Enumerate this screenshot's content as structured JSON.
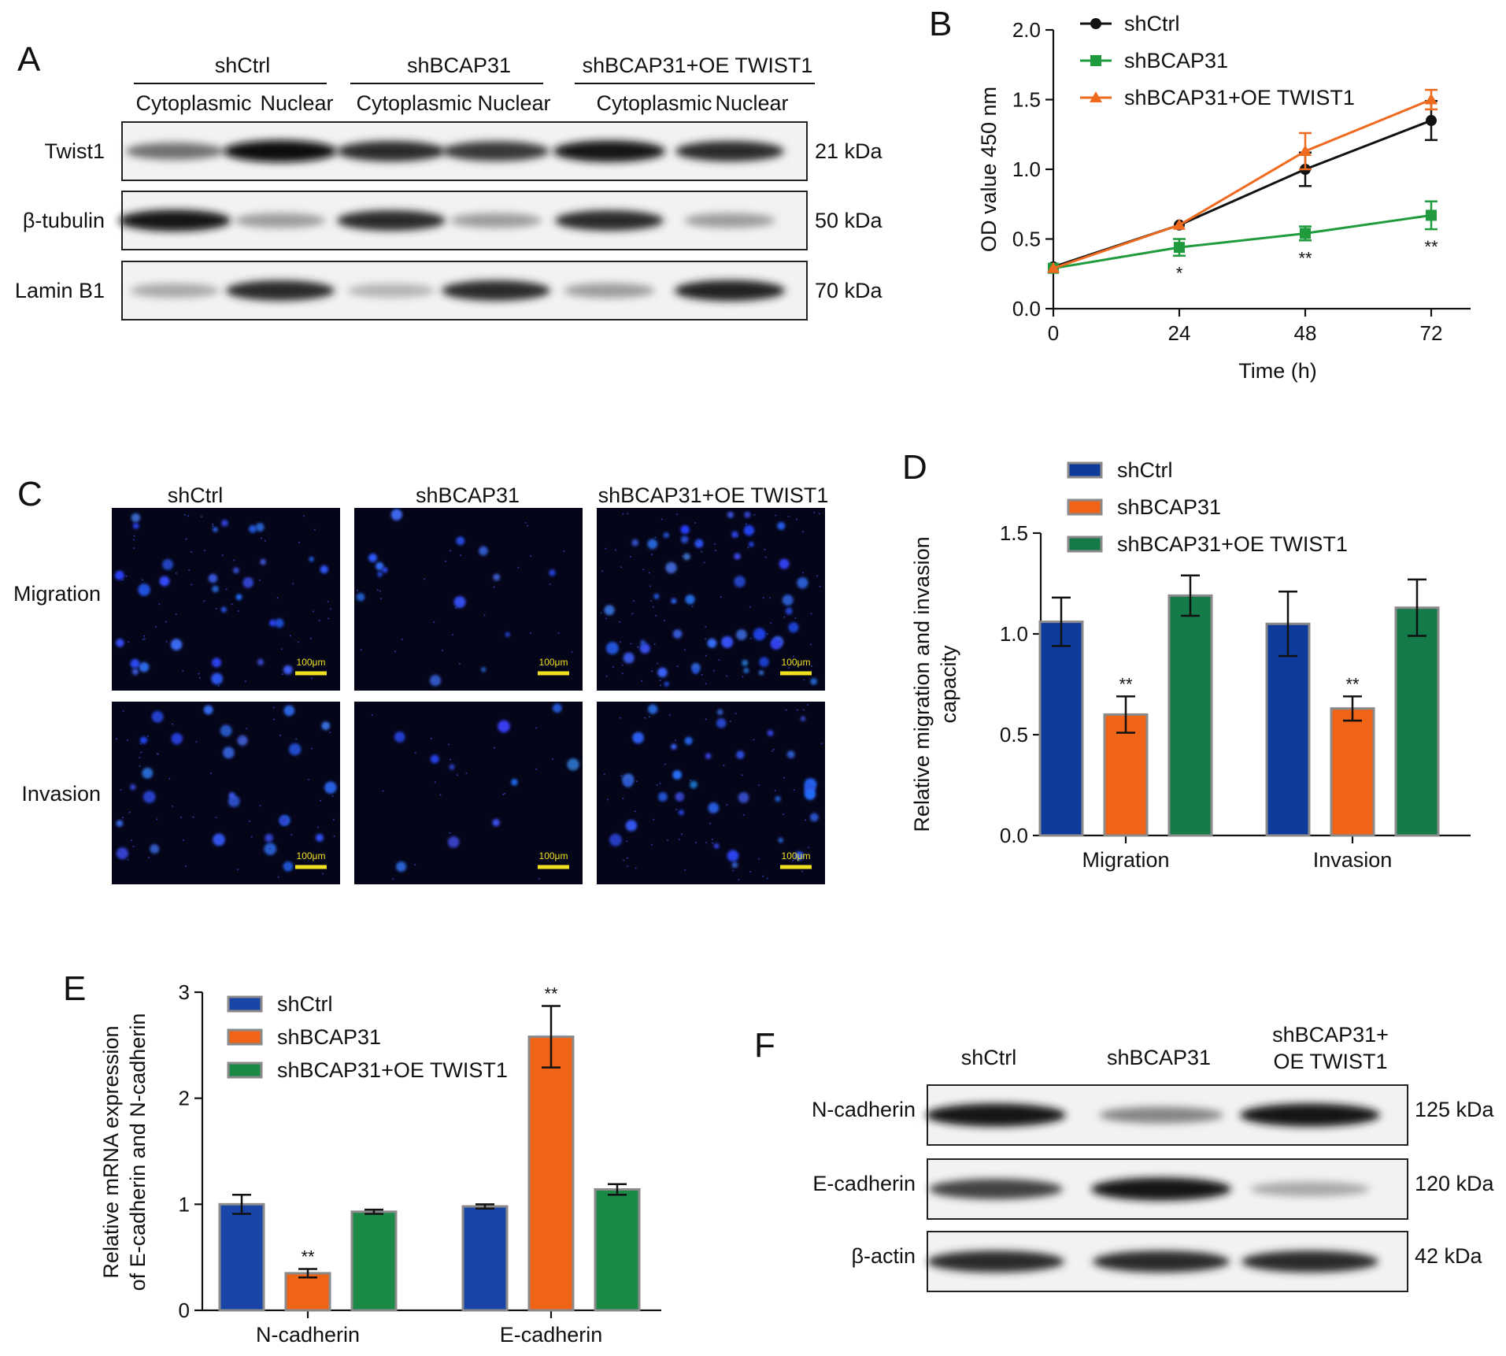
{
  "panels": {
    "A": {
      "letter": "A",
      "groups": [
        "shCtrl",
        "shBCAP31",
        "shBCAP31+OE TWIST1"
      ],
      "fractions": [
        "Cytoplasmic",
        "Nuclear",
        "Cytoplasmic",
        "Nuclear",
        "Cytoplasmic",
        "Nuclear"
      ],
      "rows": [
        {
          "label": "Twist1",
          "size": "21 kDa",
          "intensity": [
            0.55,
            1.0,
            0.85,
            0.8,
            0.95,
            0.85
          ]
        },
        {
          "label": "β-tubulin",
          "size": "50 kDa",
          "intensity": [
            0.95,
            0.35,
            0.85,
            0.35,
            0.85,
            0.35
          ]
        },
        {
          "label": "Lamin B1",
          "size": "70 kDa",
          "intensity": [
            0.3,
            0.85,
            0.25,
            0.85,
            0.35,
            0.9
          ]
        }
      ]
    },
    "C": {
      "letter": "C",
      "columns": [
        "shCtrl",
        "shBCAP31",
        "shBCAP31+OE TWIST1"
      ],
      "rows": [
        "Migration",
        "Invasion"
      ],
      "scale_bar": "100μm"
    },
    "F": {
      "letter": "F",
      "columns": [
        "shCtrl",
        "shBCAP31",
        "shBCAP31+\nOE TWIST1"
      ],
      "rows": [
        {
          "label": "N-cadherin",
          "size": "125 kDa",
          "intensity": [
            0.95,
            0.45,
            0.95
          ]
        },
        {
          "label": "E-cadherin",
          "size": "120 kDa",
          "intensity": [
            0.75,
            0.95,
            0.3
          ]
        },
        {
          "label": "β-actin",
          "size": "42 kDa",
          "intensity": [
            0.85,
            0.85,
            0.85
          ]
        }
      ]
    }
  },
  "chart_data": [
    {
      "panel": "B",
      "type": "line",
      "xlabel": "Time (h)",
      "ylabel": "OD value 450 nm",
      "x": [
        0,
        24,
        48,
        72
      ],
      "xticks": [
        "0",
        "24",
        "48",
        "72"
      ],
      "yticks": [
        "0.0",
        "0.5",
        "1.0",
        "1.5",
        "2.0"
      ],
      "ylim": [
        0,
        2.0
      ],
      "legend_position": "top",
      "series": [
        {
          "name": "shCtrl",
          "color": "#111111",
          "marker": "circle",
          "values": [
            0.3,
            0.6,
            1.0,
            1.35
          ],
          "errors": [
            0.02,
            0.02,
            0.12,
            0.14
          ]
        },
        {
          "name": "shBCAP31",
          "color": "#1f9a3c",
          "marker": "square",
          "values": [
            0.29,
            0.44,
            0.54,
            0.67
          ],
          "errors": [
            0.02,
            0.06,
            0.05,
            0.1
          ],
          "annotations": [
            "",
            "*",
            "**",
            "**"
          ]
        },
        {
          "name": "shBCAP31+OE TWIST1",
          "color": "#ee6a1e",
          "marker": "triangle",
          "values": [
            0.29,
            0.6,
            1.13,
            1.5
          ],
          "errors": [
            0.02,
            0.02,
            0.13,
            0.07
          ]
        }
      ]
    },
    {
      "panel": "D",
      "type": "bar",
      "ylabel": "Relative migration and invasion\ncapacity",
      "categories": [
        "Migration",
        "Invasion"
      ],
      "yticks": [
        "0.0",
        "0.5",
        "1.0",
        "1.5"
      ],
      "ylim": [
        0,
        1.5
      ],
      "legend_position": "top",
      "series": [
        {
          "name": "shCtrl",
          "color": "#0e3a9c",
          "values": [
            1.06,
            1.05
          ],
          "errors": [
            0.12,
            0.16
          ]
        },
        {
          "name": "shBCAP31",
          "color": "#f06418",
          "values": [
            0.6,
            0.63
          ],
          "errors": [
            0.09,
            0.06
          ],
          "annotations": [
            "**",
            "**"
          ]
        },
        {
          "name": "shBCAP31+OE TWIST1",
          "color": "#147a48",
          "values": [
            1.19,
            1.13
          ],
          "errors": [
            0.1,
            0.14
          ]
        }
      ]
    },
    {
      "panel": "E",
      "type": "bar",
      "ylabel": "Relative mRNA expression\nof E-cadherin and N-cadherin",
      "categories": [
        "N-cadherin",
        "E-cadherin"
      ],
      "yticks": [
        "0",
        "1",
        "2",
        "3"
      ],
      "ylim": [
        0,
        3
      ],
      "legend_position": "top-left",
      "series": [
        {
          "name": "shCtrl",
          "color": "#1a45a8",
          "values": [
            1.0,
            0.98
          ],
          "errors": [
            0.09,
            0.02
          ]
        },
        {
          "name": "shBCAP31",
          "color": "#f06418",
          "values": [
            0.35,
            2.58
          ],
          "errors": [
            0.04,
            0.29
          ],
          "annotations": [
            "**",
            "**"
          ]
        },
        {
          "name": "shBCAP31+OE TWIST1",
          "color": "#1a8a46",
          "values": [
            0.93,
            1.14
          ],
          "errors": [
            0.02,
            0.05
          ]
        }
      ]
    }
  ]
}
